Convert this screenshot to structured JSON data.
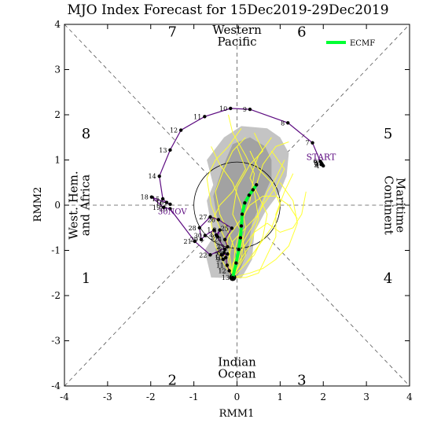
{
  "chart_data": {
    "type": "line",
    "title": "MJO Index Forecast for 15Dec2019-29Dec2019",
    "xlabel": "RMM1",
    "ylabel": "RMM2",
    "xlim": [
      -4,
      4
    ],
    "ylim": [
      -4,
      4
    ],
    "x_ticks": [
      "-4",
      "-3",
      "-2",
      "-1",
      "0",
      "1",
      "2",
      "3",
      "4"
    ],
    "y_ticks": [
      "-4",
      "-3",
      "-2",
      "-1",
      "0",
      "1",
      "2",
      "3",
      "4"
    ],
    "grid": false,
    "legend": {
      "position": "top-right",
      "entries": [
        {
          "name": "ECMF",
          "color": "#00ff33"
        }
      ]
    },
    "phases": [
      {
        "label": "1",
        "x": -3.5,
        "y": -1.6
      },
      {
        "label": "2",
        "x": -1.5,
        "y": -3.85
      },
      {
        "label": "3",
        "x": 1.5,
        "y": -3.85
      },
      {
        "label": "4",
        "x": 3.5,
        "y": -1.6
      },
      {
        "label": "5",
        "x": 3.5,
        "y": 1.6
      },
      {
        "label": "6",
        "x": 1.5,
        "y": 3.85
      },
      {
        "label": "7",
        "x": -1.5,
        "y": 3.85
      },
      {
        "label": "8",
        "x": -3.5,
        "y": 1.6
      }
    ],
    "region_labels": [
      {
        "lines": [
          "Western",
          "Pacific"
        ],
        "x": 0,
        "y": 3.75,
        "rotate": 0
      },
      {
        "lines": [
          "Indian",
          "Ocean"
        ],
        "x": 0,
        "y": -3.6,
        "rotate": 0
      },
      {
        "lines": [
          "West. Hem.",
          "and Africa"
        ],
        "x": -3.65,
        "y": 0,
        "rotate": -90
      },
      {
        "lines": [
          "Maritime",
          "Continent"
        ],
        "x": 3.65,
        "y": 0,
        "rotate": 90
      }
    ],
    "observed": {
      "color": "#5c0a80",
      "start_label": "START",
      "end_label": "30NOV",
      "start_label_pos": [
        1.95,
        1.0
      ],
      "end_label_pos": [
        -1.5,
        -0.2
      ],
      "points": [
        {
          "x": 2.0,
          "y": 0.87,
          "label": "1"
        },
        {
          "x": 1.95,
          "y": 0.9,
          "label": "2"
        },
        {
          "x": 1.97,
          "y": 0.91,
          "label": "3"
        },
        {
          "x": 1.96,
          "y": 0.92,
          "label": "4"
        },
        {
          "x": 1.95,
          "y": 0.94,
          "label": "5"
        },
        {
          "x": 1.93,
          "y": 0.97,
          "label": "6"
        },
        {
          "x": 1.75,
          "y": 1.38,
          "label": "7"
        },
        {
          "x": 1.18,
          "y": 1.82,
          "label": "8"
        },
        {
          "x": 0.3,
          "y": 2.12,
          "label": "9"
        },
        {
          "x": -0.15,
          "y": 2.14,
          "label": "10"
        },
        {
          "x": -0.75,
          "y": 1.96,
          "label": "11"
        },
        {
          "x": -1.3,
          "y": 1.66,
          "label": "12"
        },
        {
          "x": -1.55,
          "y": 1.22,
          "label": "13"
        },
        {
          "x": -1.8,
          "y": 0.64,
          "label": "14"
        },
        {
          "x": -1.72,
          "y": 0.14,
          "label": "15"
        },
        {
          "x": -1.63,
          "y": 0.06,
          "label": "16"
        },
        {
          "x": -1.55,
          "y": 0.02,
          "label": "17"
        },
        {
          "x": -1.98,
          "y": 0.18,
          "label": "18"
        },
        {
          "x": -1.7,
          "y": -0.05,
          "label": "19"
        },
        {
          "x": -1.55,
          "y": -0.08,
          "label": "20"
        },
        {
          "x": -0.98,
          "y": -0.8,
          "label": "21"
        },
        {
          "x": -0.62,
          "y": -1.1,
          "label": "22"
        },
        {
          "x": -0.22,
          "y": -0.92,
          "label": "23"
        },
        {
          "x": -0.28,
          "y": -0.76,
          "label": "24"
        },
        {
          "x": -0.12,
          "y": -0.51,
          "label": "25"
        },
        {
          "x": -0.43,
          "y": -0.32,
          "label": "26"
        },
        {
          "x": -0.62,
          "y": -0.26,
          "label": "27"
        },
        {
          "x": -0.87,
          "y": -0.5,
          "label": "28"
        },
        {
          "x": -0.83,
          "y": -0.76,
          "label": "29"
        },
        {
          "x": -0.74,
          "y": -0.67,
          "label": "30"
        },
        {
          "x": -0.53,
          "y": -0.55,
          "label": "1"
        },
        {
          "x": -0.45,
          "y": -0.7,
          "label": "2"
        },
        {
          "x": -0.4,
          "y": -0.55,
          "label": "3"
        },
        {
          "x": -0.48,
          "y": -0.66,
          "label": "4"
        },
        {
          "x": -0.28,
          "y": -0.98,
          "label": "5"
        },
        {
          "x": -0.3,
          "y": -1.05,
          "label": "6"
        },
        {
          "x": -0.36,
          "y": -1.1,
          "label": "7"
        },
        {
          "x": -0.22,
          "y": -1.08,
          "label": "8"
        },
        {
          "x": -0.32,
          "y": -1.2,
          "label": "9"
        },
        {
          "x": -0.26,
          "y": -1.16,
          "label": "10"
        },
        {
          "x": -0.23,
          "y": -1.33,
          "label": "11"
        },
        {
          "x": -0.18,
          "y": -1.45,
          "label": "12"
        },
        {
          "x": -0.1,
          "y": -1.6,
          "label": "13"
        }
      ]
    },
    "ensemble_mean": {
      "name": "ECMF",
      "color": "#00ff33",
      "points": [
        {
          "x": -0.1,
          "y": -1.6
        },
        {
          "x": -0.02,
          "y": -1.28
        },
        {
          "x": 0.04,
          "y": -0.98
        },
        {
          "x": 0.08,
          "y": -0.72
        },
        {
          "x": 0.1,
          "y": -0.46
        },
        {
          "x": 0.12,
          "y": -0.2
        },
        {
          "x": 0.18,
          "y": 0.05
        },
        {
          "x": 0.28,
          "y": 0.22
        },
        {
          "x": 0.37,
          "y": 0.34
        },
        {
          "x": 0.45,
          "y": 0.45
        }
      ]
    },
    "uncertainty_outer": [
      [
        -0.6,
        -1.6
      ],
      [
        -0.75,
        -1.0
      ],
      [
        -0.55,
        -0.7
      ],
      [
        -0.7,
        0.1
      ],
      [
        -0.55,
        0.45
      ],
      [
        -0.7,
        1.0
      ],
      [
        -0.3,
        1.5
      ],
      [
        0.1,
        1.75
      ],
      [
        0.7,
        1.7
      ],
      [
        1.0,
        1.5
      ],
      [
        1.2,
        1.15
      ],
      [
        1.15,
        0.65
      ],
      [
        1.0,
        0.3
      ],
      [
        0.65,
        -0.15
      ],
      [
        0.4,
        -0.6
      ],
      [
        0.35,
        -1.2
      ],
      [
        0.1,
        -1.62
      ]
    ],
    "uncertainty_inner": [
      [
        -0.4,
        -1.5
      ],
      [
        -0.5,
        -1.0
      ],
      [
        -0.4,
        -0.6
      ],
      [
        -0.55,
        0.2
      ],
      [
        -0.35,
        0.8
      ],
      [
        -0.1,
        1.35
      ],
      [
        0.3,
        1.5
      ],
      [
        0.65,
        1.3
      ],
      [
        0.8,
        1.0
      ],
      [
        0.8,
        0.6
      ],
      [
        0.6,
        0.15
      ],
      [
        0.35,
        -0.4
      ],
      [
        0.25,
        -1.0
      ],
      [
        0.0,
        -1.6
      ]
    ],
    "members": [
      [
        [
          -0.1,
          -1.6
        ],
        [
          0.1,
          -1.2
        ],
        [
          0.15,
          -0.8
        ],
        [
          0.4,
          -0.4
        ],
        [
          0.6,
          0.0
        ],
        [
          0.9,
          0.4
        ],
        [
          1.1,
          0.8
        ],
        [
          0.8,
          1.2
        ]
      ],
      [
        [
          -0.1,
          -1.6
        ],
        [
          -0.2,
          -1.2
        ],
        [
          -0.1,
          -0.8
        ],
        [
          0.2,
          -0.5
        ],
        [
          0.5,
          -0.2
        ],
        [
          0.7,
          0.3
        ],
        [
          0.9,
          0.6
        ],
        [
          1.1,
          1.0
        ]
      ],
      [
        [
          -0.1,
          -1.6
        ],
        [
          0.0,
          -1.1
        ],
        [
          -0.2,
          -0.6
        ],
        [
          -0.4,
          -0.2
        ],
        [
          -0.5,
          0.3
        ],
        [
          -0.3,
          0.8
        ],
        [
          -0.1,
          1.2
        ],
        [
          0.2,
          1.5
        ]
      ],
      [
        [
          -0.1,
          -1.6
        ],
        [
          0.2,
          -1.3
        ],
        [
          0.5,
          -0.9
        ],
        [
          0.8,
          -0.5
        ],
        [
          1.0,
          0.0
        ],
        [
          0.8,
          0.5
        ],
        [
          0.5,
          0.8
        ],
        [
          0.3,
          1.2
        ]
      ],
      [
        [
          -0.1,
          -1.6
        ],
        [
          -0.3,
          -1.3
        ],
        [
          -0.5,
          -0.9
        ],
        [
          -0.6,
          -0.4
        ],
        [
          -0.4,
          0.0
        ],
        [
          -0.1,
          0.3
        ],
        [
          0.2,
          0.8
        ],
        [
          0.0,
          1.3
        ]
      ],
      [
        [
          -0.1,
          -1.6
        ],
        [
          0.1,
          -1.4
        ],
        [
          0.4,
          -1.1
        ],
        [
          0.6,
          -0.7
        ],
        [
          0.7,
          -0.2
        ],
        [
          0.5,
          0.2
        ],
        [
          0.3,
          0.6
        ],
        [
          0.5,
          1.1
        ],
        [
          0.8,
          1.5
        ]
      ],
      [
        [
          -0.1,
          -1.6
        ],
        [
          -0.05,
          -1.0
        ],
        [
          0.1,
          -0.4
        ],
        [
          0.3,
          0.1
        ],
        [
          0.4,
          0.7
        ],
        [
          0.2,
          1.1
        ],
        [
          -0.1,
          1.6
        ],
        [
          -0.2,
          2.0
        ]
      ],
      [
        [
          -0.1,
          -1.6
        ],
        [
          0.3,
          -1.5
        ],
        [
          0.6,
          -1.4
        ],
        [
          0.9,
          -1.2
        ],
        [
          1.2,
          -0.9
        ],
        [
          1.4,
          -0.4
        ],
        [
          1.3,
          0.1
        ],
        [
          1.0,
          0.5
        ]
      ],
      [
        [
          -0.1,
          -1.6
        ],
        [
          -0.2,
          -0.9
        ],
        [
          -0.4,
          -0.5
        ],
        [
          -0.6,
          0.0
        ],
        [
          -0.7,
          0.6
        ],
        [
          -0.5,
          1.0
        ],
        [
          -0.2,
          1.3
        ],
        [
          0.1,
          1.7
        ]
      ],
      [
        [
          -0.1,
          -1.6
        ],
        [
          0.0,
          -1.3
        ],
        [
          0.3,
          -0.9
        ],
        [
          0.5,
          -0.3
        ],
        [
          0.4,
          0.3
        ],
        [
          0.6,
          0.9
        ],
        [
          0.9,
          1.3
        ],
        [
          1.2,
          1.4
        ]
      ],
      [
        [
          -0.1,
          -1.6
        ],
        [
          0.2,
          -1.1
        ],
        [
          0.1,
          -0.6
        ],
        [
          -0.1,
          -0.2
        ],
        [
          0.0,
          0.4
        ],
        [
          0.3,
          0.9
        ],
        [
          0.6,
          1.2
        ],
        [
          0.4,
          1.6
        ]
      ],
      [
        [
          -0.1,
          -1.6
        ],
        [
          -0.3,
          -1.1
        ],
        [
          -0.2,
          -0.7
        ],
        [
          0.1,
          -0.3
        ],
        [
          0.3,
          0.0
        ],
        [
          0.6,
          0.2
        ],
        [
          0.9,
          0.2
        ],
        [
          1.2,
          0.0
        ],
        [
          1.4,
          -0.3
        ]
      ],
      [
        [
          -0.1,
          -1.6
        ],
        [
          0.1,
          -1.0
        ],
        [
          0.4,
          -0.6
        ],
        [
          0.7,
          -0.4
        ],
        [
          1.0,
          -0.6
        ],
        [
          1.3,
          -0.5
        ],
        [
          1.5,
          -0.2
        ],
        [
          1.6,
          0.3
        ]
      ],
      [
        [
          -0.1,
          -1.6
        ],
        [
          -0.1,
          -1.3
        ],
        [
          0.1,
          -0.9
        ],
        [
          0.2,
          -0.5
        ],
        [
          0.1,
          0.0
        ],
        [
          -0.1,
          0.5
        ],
        [
          -0.4,
          0.9
        ],
        [
          -0.6,
          1.3
        ]
      ],
      [
        [
          -0.1,
          -1.6
        ],
        [
          0.2,
          -1.6
        ],
        [
          0.5,
          -1.5
        ],
        [
          0.7,
          -1.1
        ],
        [
          0.9,
          -0.7
        ],
        [
          0.9,
          -0.2
        ],
        [
          1.1,
          0.3
        ],
        [
          1.3,
          0.7
        ]
      ]
    ]
  }
}
